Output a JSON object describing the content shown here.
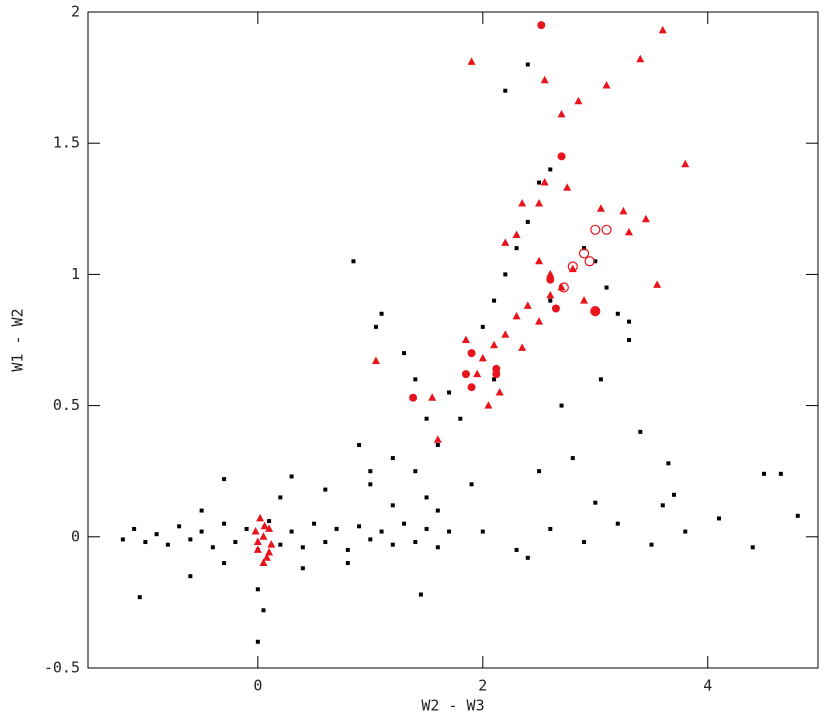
{
  "chart_data": {
    "type": "scatter",
    "x_label": "W2 - W3",
    "y_label": "W1 - W2",
    "xlim": [
      -1.51,
      4.98
    ],
    "ylim": [
      -0.5,
      2
    ],
    "xticks": [
      0,
      2,
      4
    ],
    "yticks": [
      -0.5,
      0,
      0.5,
      1,
      1.5,
      2
    ],
    "series": [
      {
        "marker": "square",
        "color": "#000000",
        "x": [
          -1.2,
          -1.1,
          -1.0,
          -0.9,
          -0.8,
          -0.7,
          -0.6,
          -0.5,
          -0.4,
          -0.3,
          -0.2,
          -0.1,
          0.0,
          0.1,
          0.2,
          0.3,
          0.4,
          0.5,
          0.6,
          0.7,
          0.8,
          0.9,
          1.0,
          1.1,
          1.2,
          1.3,
          1.4,
          1.5,
          1.6,
          1.7,
          -0.5,
          -0.3,
          0.2,
          0.4,
          0.6,
          0.8,
          1.0,
          1.2,
          1.4,
          1.6,
          0.3,
          -0.3,
          0.0,
          0.05,
          0.0,
          -1.05,
          1.45,
          -0.6,
          2.0,
          2.3,
          2.6,
          2.9,
          3.2,
          3.5,
          3.8,
          4.1,
          4.4,
          4.8,
          3.0,
          3.6,
          4.5,
          4.65,
          3.7,
          2.4,
          0.85,
          1.05,
          1.1,
          1.3,
          1.4,
          1.5,
          1.7,
          1.9,
          2.0,
          2.1,
          2.2,
          2.3,
          2.4,
          2.5,
          2.6,
          2.2,
          2.4,
          2.9,
          3.0,
          3.1,
          3.2,
          3.3,
          3.05,
          2.7,
          2.8,
          2.5,
          3.4,
          3.65,
          3.3,
          1.6,
          1.2,
          1.0,
          0.9,
          1.8,
          2.1,
          2.6,
          1.5,
          1.9
        ],
        "values": [
          -0.01,
          0.03,
          -0.02,
          0.01,
          -0.03,
          0.04,
          -0.01,
          0.02,
          -0.04,
          0.05,
          -0.02,
          0.03,
          -0.05,
          0.06,
          -0.03,
          0.02,
          -0.04,
          0.05,
          -0.02,
          0.03,
          -0.05,
          0.04,
          -0.01,
          0.02,
          -0.03,
          0.05,
          -0.02,
          0.03,
          -0.04,
          0.02,
          0.1,
          -0.1,
          0.15,
          -0.12,
          0.18,
          -0.1,
          0.2,
          0.12,
          0.25,
          0.1,
          0.23,
          0.22,
          -0.2,
          -0.28,
          -0.4,
          -0.23,
          -0.22,
          -0.15,
          0.02,
          -0.05,
          0.03,
          -0.02,
          0.05,
          -0.03,
          0.02,
          0.07,
          -0.04,
          0.08,
          0.13,
          0.12,
          0.24,
          0.24,
          0.16,
          -0.08,
          1.05,
          0.8,
          0.85,
          0.7,
          0.6,
          0.45,
          0.55,
          0.7,
          0.8,
          0.9,
          1.0,
          1.1,
          1.2,
          1.35,
          1.4,
          1.7,
          1.8,
          1.1,
          1.05,
          0.95,
          0.85,
          0.75,
          0.6,
          0.5,
          0.3,
          0.25,
          0.4,
          0.28,
          0.82,
          0.35,
          0.3,
          0.25,
          0.35,
          0.45,
          0.6,
          0.9,
          0.15,
          0.2
        ]
      },
      {
        "marker": "triangle",
        "color": "#e8141c",
        "x": [
          1.9,
          2.55,
          2.7,
          2.85,
          3.1,
          3.4,
          3.6,
          3.8,
          2.5,
          2.35,
          2.55,
          2.75,
          3.05,
          3.25,
          3.45,
          3.3,
          2.2,
          2.3,
          2.5,
          2.6,
          2.7,
          2.8,
          2.6,
          2.5,
          2.4,
          2.3,
          2.2,
          2.35,
          2.1,
          2.0,
          1.95,
          2.15,
          2.05,
          1.55,
          1.6,
          1.05,
          3.55,
          2.9,
          1.85,
          0.05,
          0.0,
          0.1,
          0.05,
          0.08,
          -0.02,
          0.12,
          0.02,
          0.0,
          0.1,
          0.06
        ],
        "values": [
          1.81,
          1.74,
          1.61,
          1.66,
          1.72,
          1.82,
          1.93,
          1.42,
          1.27,
          1.27,
          1.35,
          1.33,
          1.25,
          1.24,
          1.21,
          1.16,
          1.12,
          1.15,
          1.05,
          1.0,
          0.95,
          1.02,
          0.92,
          0.82,
          0.88,
          0.84,
          0.77,
          0.72,
          0.73,
          0.68,
          0.62,
          0.55,
          0.5,
          0.53,
          0.37,
          0.67,
          0.96,
          0.9,
          0.75,
          0.0,
          -0.05,
          0.03,
          -0.1,
          -0.08,
          0.02,
          -0.03,
          0.07,
          -0.02,
          -0.06,
          0.04
        ]
      },
      {
        "marker": "circle",
        "color": "#e8141c",
        "x": [
          2.52,
          2.7,
          1.9,
          1.85,
          1.9,
          1.38,
          2.12,
          2.12,
          2.65,
          3.0,
          2.6
        ],
        "values": [
          1.95,
          1.45,
          0.7,
          0.62,
          0.57,
          0.53,
          0.62,
          0.64,
          0.87,
          0.86,
          0.98
        ]
      },
      {
        "marker": "open-circle",
        "color": "#e8141c",
        "x": [
          2.8,
          2.9,
          2.95,
          3.0,
          3.1,
          2.72,
          3.0
        ],
        "values": [
          1.03,
          1.08,
          1.05,
          1.17,
          1.17,
          0.95,
          0.86
        ]
      }
    ]
  }
}
